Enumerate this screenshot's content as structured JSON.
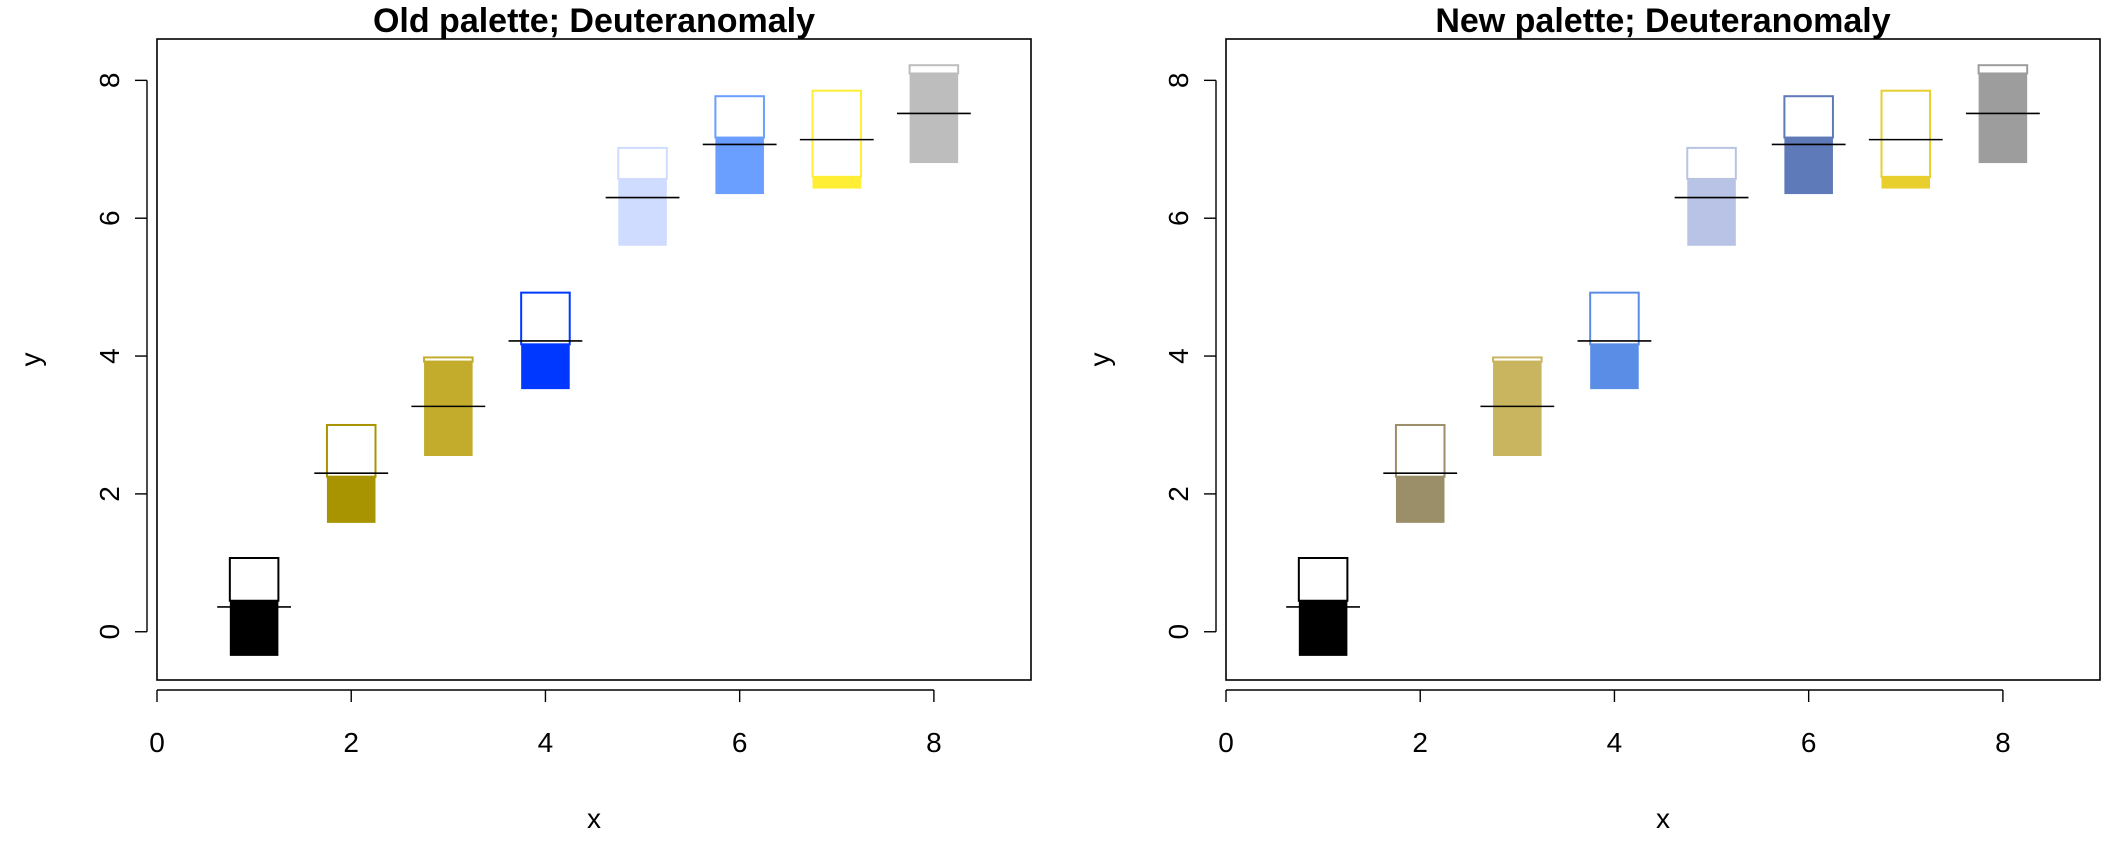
{
  "chart_data": [
    {
      "type": "bar",
      "title": "Old palette; Deuteranomaly",
      "xlabel": "x",
      "ylabel": "y",
      "xlim": [
        0,
        9
      ],
      "ylim": [
        -0.7,
        8.6
      ],
      "xticks": [
        "0",
        "2",
        "4",
        "6",
        "8"
      ],
      "yticks": [
        "0",
        "2",
        "4",
        "6",
        "8"
      ],
      "grid": false,
      "bars": [
        {
          "x": 1,
          "bottom": -0.35,
          "fill_top": 0.45,
          "box_top": 1.07,
          "mark": 0.36,
          "fill": "#000000",
          "edge": "#000000"
        },
        {
          "x": 2,
          "bottom": 1.58,
          "fill_top": 2.25,
          "box_top": 3.0,
          "mark": 2.3,
          "fill": "#a89400",
          "edge": "#a89400"
        },
        {
          "x": 3,
          "bottom": 2.55,
          "fill_top": 3.92,
          "box_top": 3.98,
          "mark": 3.27,
          "fill": "#c3ac2c",
          "edge": "#c3ac2c"
        },
        {
          "x": 4,
          "bottom": 3.52,
          "fill_top": 4.17,
          "box_top": 4.92,
          "mark": 4.22,
          "fill": "#0038ff",
          "edge": "#0038ff"
        },
        {
          "x": 5,
          "bottom": 5.6,
          "fill_top": 6.57,
          "box_top": 7.02,
          "mark": 6.3,
          "fill": "#cfdcff",
          "edge": "#cfdcff"
        },
        {
          "x": 6,
          "bottom": 6.35,
          "fill_top": 7.17,
          "box_top": 7.77,
          "mark": 7.07,
          "fill": "#6a9eff",
          "edge": "#6a9eff"
        },
        {
          "x": 7,
          "bottom": 6.43,
          "fill_top": 6.6,
          "box_top": 7.85,
          "mark": 7.14,
          "fill": "#ffee33",
          "edge": "#ffee33"
        },
        {
          "x": 8,
          "bottom": 6.8,
          "fill_top": 8.1,
          "box_top": 8.22,
          "mark": 7.52,
          "fill": "#bdbdbd",
          "edge": "#bdbdbd"
        }
      ]
    },
    {
      "type": "bar",
      "title": "New palette; Deuteranomaly",
      "xlabel": "x",
      "ylabel": "y",
      "xlim": [
        0,
        9
      ],
      "ylim": [
        -0.7,
        8.6
      ],
      "xticks": [
        "0",
        "2",
        "4",
        "6",
        "8"
      ],
      "yticks": [
        "0",
        "2",
        "4",
        "6",
        "8"
      ],
      "grid": false,
      "bars": [
        {
          "x": 1,
          "bottom": -0.35,
          "fill_top": 0.45,
          "box_top": 1.07,
          "mark": 0.36,
          "fill": "#000000",
          "edge": "#000000"
        },
        {
          "x": 2,
          "bottom": 1.58,
          "fill_top": 2.25,
          "box_top": 3.0,
          "mark": 2.3,
          "fill": "#9a8f69",
          "edge": "#9a8f69"
        },
        {
          "x": 3,
          "bottom": 2.55,
          "fill_top": 3.92,
          "box_top": 3.98,
          "mark": 3.27,
          "fill": "#c9b45f",
          "edge": "#c9b45f"
        },
        {
          "x": 4,
          "bottom": 3.52,
          "fill_top": 4.17,
          "box_top": 4.92,
          "mark": 4.22,
          "fill": "#5a8ee6",
          "edge": "#5a8ee6"
        },
        {
          "x": 5,
          "bottom": 5.6,
          "fill_top": 6.57,
          "box_top": 7.02,
          "mark": 6.3,
          "fill": "#b9c3e6",
          "edge": "#b9c3e6"
        },
        {
          "x": 6,
          "bottom": 6.35,
          "fill_top": 7.17,
          "box_top": 7.77,
          "mark": 7.07,
          "fill": "#5f7ab8",
          "edge": "#5f7ab8"
        },
        {
          "x": 7,
          "bottom": 6.43,
          "fill_top": 6.6,
          "box_top": 7.85,
          "mark": 7.14,
          "fill": "#e8cf2e",
          "edge": "#e8cf2e"
        },
        {
          "x": 8,
          "bottom": 6.8,
          "fill_top": 8.1,
          "box_top": 8.22,
          "mark": 7.52,
          "fill": "#9d9d9d",
          "edge": "#9d9d9d"
        }
      ]
    }
  ]
}
